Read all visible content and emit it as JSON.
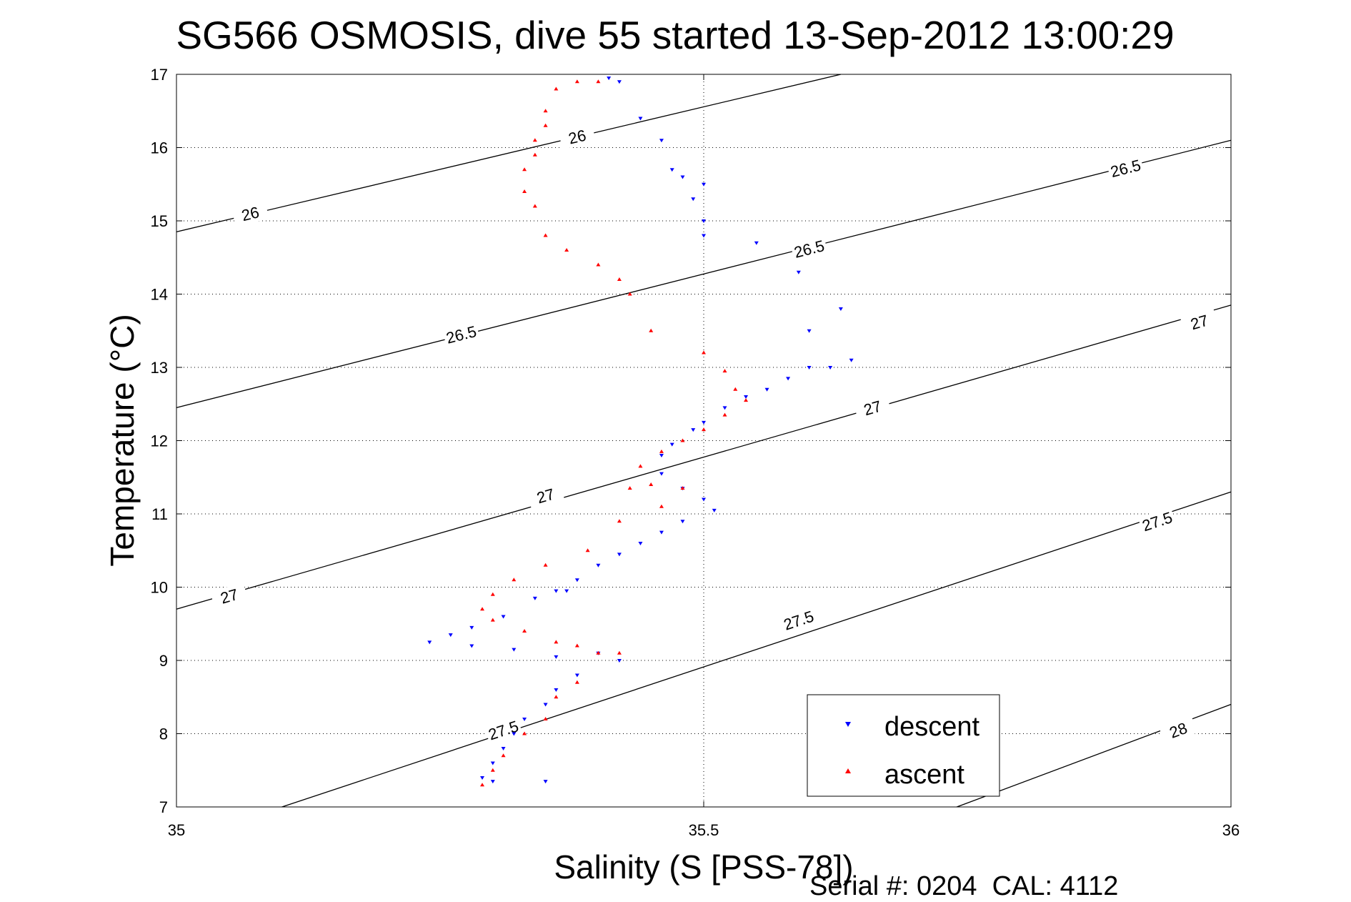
{
  "chart_data": {
    "type": "scatter",
    "title": "SG566 OSMOSIS, dive 55 started 13-Sep-2012 13:00:29",
    "xlabel": "Salinity (S [PSS-78])",
    "ylabel": "Temperature (°C)",
    "xlim": [
      35,
      36
    ],
    "ylim": [
      7,
      17
    ],
    "x_ticks": [
      "35",
      "35.5",
      "36"
    ],
    "y_ticks": [
      "7",
      "8",
      "9",
      "10",
      "11",
      "12",
      "13",
      "14",
      "15",
      "16",
      "17"
    ],
    "grid": "dotted",
    "footer": "Serial #: 0204  CAL: 4112",
    "legend": {
      "position": "bottom-right",
      "entries": [
        "descent",
        "ascent"
      ]
    },
    "colors": {
      "descent": "#0000ff",
      "ascent": "#ff0000",
      "contour": "#000000"
    },
    "density_contours": [
      {
        "label": "26",
        "points": [
          [
            35,
            14.85
          ],
          [
            35.63,
            17
          ]
        ],
        "label_positions": [
          [
            35.07,
            15.1
          ],
          [
            35.38,
            16.15
          ]
        ]
      },
      {
        "label": "26.5",
        "points": [
          [
            35,
            12.45
          ],
          [
            36,
            16.1
          ]
        ],
        "label_positions": [
          [
            35.27,
            13.45
          ],
          [
            35.6,
            14.62
          ],
          [
            35.9,
            15.72
          ]
        ]
      },
      {
        "label": "27",
        "points": [
          [
            35,
            9.7
          ],
          [
            36,
            13.85
          ]
        ],
        "label_positions": [
          [
            35.05,
            9.88
          ],
          [
            35.35,
            11.25
          ],
          [
            35.66,
            12.45
          ],
          [
            35.97,
            13.62
          ]
        ]
      },
      {
        "label": "27.5",
        "points": [
          [
            35.1,
            7
          ],
          [
            36,
            11.3
          ]
        ],
        "label_positions": [
          [
            35.31,
            8.05
          ],
          [
            35.59,
            9.55
          ],
          [
            35.93,
            10.9
          ]
        ]
      },
      {
        "label": "28",
        "points": [
          [
            35.74,
            7
          ],
          [
            36,
            8.4
          ]
        ],
        "label_positions": [
          [
            35.95,
            8.05
          ]
        ]
      }
    ],
    "series": [
      {
        "name": "descent",
        "marker": "triangle-down",
        "x": [
          35.41,
          35.42,
          35.44,
          35.46,
          35.47,
          35.48,
          35.49,
          35.5,
          35.5,
          35.5,
          35.55,
          35.59,
          35.6,
          35.63,
          35.62,
          35.64,
          35.6,
          35.58,
          35.56,
          35.54,
          35.52,
          35.5,
          35.49,
          35.47,
          35.46,
          35.46,
          35.48,
          35.5,
          35.51,
          35.48,
          35.46,
          35.44,
          35.42,
          35.4,
          35.38,
          35.37,
          35.36,
          35.34,
          35.31,
          35.28,
          35.26,
          35.24,
          35.28,
          35.32,
          35.36,
          35.4,
          35.42,
          35.38,
          35.36,
          35.35,
          35.33,
          35.32,
          35.31,
          35.3,
          35.29,
          35.3,
          35.35
        ],
        "y": [
          16.95,
          16.9,
          16.4,
          16.1,
          15.7,
          15.6,
          15.3,
          15.0,
          15.5,
          14.8,
          14.7,
          14.3,
          13.5,
          13.8,
          13.0,
          13.1,
          13.0,
          12.85,
          12.7,
          12.6,
          12.45,
          12.25,
          12.15,
          11.95,
          11.8,
          11.55,
          11.35,
          11.2,
          11.05,
          10.9,
          10.75,
          10.6,
          10.45,
          10.3,
          10.1,
          9.95,
          9.95,
          9.85,
          9.6,
          9.45,
          9.35,
          9.25,
          9.2,
          9.15,
          9.05,
          9.1,
          9.0,
          8.8,
          8.6,
          8.4,
          8.2,
          8.0,
          7.8,
          7.6,
          7.4,
          7.35,
          7.35
        ]
      },
      {
        "name": "ascent",
        "marker": "triangle-up",
        "x": [
          35.4,
          35.38,
          35.36,
          35.35,
          35.35,
          35.34,
          35.34,
          35.33,
          35.33,
          35.34,
          35.35,
          35.37,
          35.4,
          35.42,
          35.43,
          35.45,
          35.5,
          35.52,
          35.53,
          35.54,
          35.52,
          35.5,
          35.48,
          35.46,
          35.44,
          35.43,
          35.45,
          35.48,
          35.46,
          35.42,
          35.39,
          35.35,
          35.32,
          35.3,
          35.29,
          35.3,
          35.33,
          35.36,
          35.38,
          35.4,
          35.42,
          35.38,
          35.36,
          35.35,
          35.33,
          35.31,
          35.3,
          35.29
        ],
        "y": [
          16.9,
          16.9,
          16.8,
          16.5,
          16.3,
          16.1,
          15.9,
          15.7,
          15.4,
          15.2,
          14.8,
          14.6,
          14.4,
          14.2,
          14.0,
          13.5,
          13.2,
          12.95,
          12.7,
          12.55,
          12.35,
          12.15,
          12.0,
          11.85,
          11.65,
          11.35,
          11.4,
          11.35,
          11.1,
          10.9,
          10.5,
          10.3,
          10.1,
          9.9,
          9.7,
          9.55,
          9.4,
          9.25,
          9.2,
          9.1,
          9.1,
          8.7,
          8.5,
          8.2,
          8.0,
          7.7,
          7.5,
          7.3
        ]
      }
    ]
  }
}
